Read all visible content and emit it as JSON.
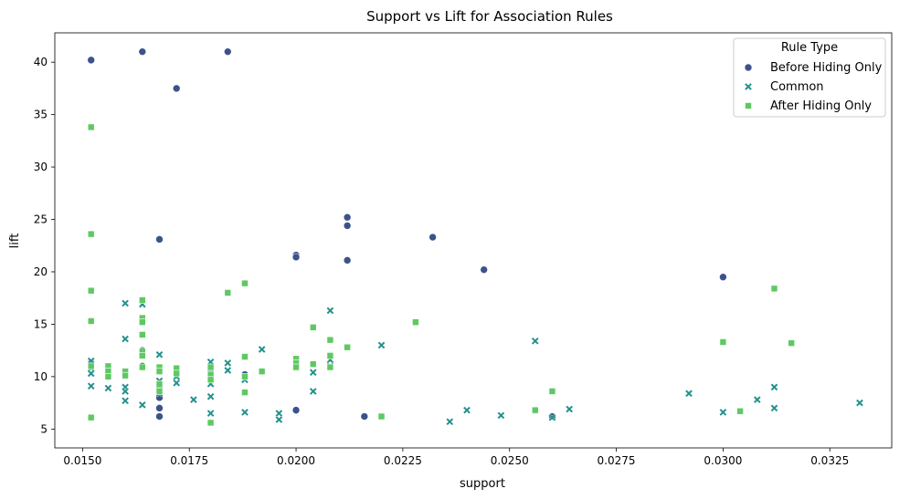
{
  "chart_data": {
    "type": "scatter",
    "title": "Support vs Lift for Association Rules",
    "xlabel": "support",
    "ylabel": "lift",
    "xlim": [
      0.01435,
      0.03395
    ],
    "ylim": [
      3.2,
      42.8
    ],
    "x_ticks": [
      "0.0150",
      "0.0175",
      "0.0200",
      "0.0225",
      "0.0250",
      "0.0275",
      "0.0300",
      "0.0325"
    ],
    "x_tick_values": [
      0.015,
      0.0175,
      0.02,
      0.0225,
      0.025,
      0.0275,
      0.03,
      0.0325
    ],
    "y_ticks": [
      "5",
      "10",
      "15",
      "20",
      "25",
      "30",
      "35",
      "40"
    ],
    "y_tick_values": [
      5,
      10,
      15,
      20,
      25,
      30,
      35,
      40
    ],
    "grid": false,
    "legend": {
      "title": "Rule Type",
      "placement": "top-right"
    },
    "series": [
      {
        "name": "Before Hiding Only",
        "marker": "circle",
        "color": "#3b528b",
        "points": [
          [
            0.0152,
            40.2
          ],
          [
            0.0164,
            41.0
          ],
          [
            0.0172,
            37.5
          ],
          [
            0.0184,
            41.0
          ],
          [
            0.0152,
            33.8
          ],
          [
            0.0152,
            23.6
          ],
          [
            0.0168,
            23.1
          ],
          [
            0.0152,
            18.2
          ],
          [
            0.0152,
            15.3
          ],
          [
            0.0152,
            11.3
          ],
          [
            0.0152,
            6.1
          ],
          [
            0.0156,
            10.6
          ],
          [
            0.016,
            10.3
          ],
          [
            0.0164,
            17.2
          ],
          [
            0.0164,
            15.5
          ],
          [
            0.0164,
            12.5
          ],
          [
            0.0164,
            11.0
          ],
          [
            0.0168,
            10.7
          ],
          [
            0.0168,
            9.0
          ],
          [
            0.0168,
            8.0
          ],
          [
            0.0168,
            7.0
          ],
          [
            0.0168,
            6.2
          ],
          [
            0.0172,
            10.5
          ],
          [
            0.018,
            10.7
          ],
          [
            0.018,
            5.6
          ],
          [
            0.0184,
            18.0
          ],
          [
            0.0188,
            18.9
          ],
          [
            0.0188,
            11.9
          ],
          [
            0.0188,
            10.2
          ],
          [
            0.0192,
            10.5
          ],
          [
            0.02,
            21.6
          ],
          [
            0.02,
            21.4
          ],
          [
            0.02,
            11.6
          ],
          [
            0.02,
            6.8
          ],
          [
            0.0204,
            14.7
          ],
          [
            0.0208,
            13.5
          ],
          [
            0.0208,
            11.9
          ],
          [
            0.0212,
            25.2
          ],
          [
            0.0212,
            24.4
          ],
          [
            0.0212,
            21.1
          ],
          [
            0.0212,
            12.8
          ],
          [
            0.0216,
            6.2
          ],
          [
            0.022,
            6.2
          ],
          [
            0.0228,
            15.2
          ],
          [
            0.0232,
            23.3
          ],
          [
            0.0244,
            20.2
          ],
          [
            0.0256,
            6.8
          ],
          [
            0.026,
            8.6
          ],
          [
            0.026,
            6.2
          ],
          [
            0.03,
            19.5
          ],
          [
            0.03,
            13.3
          ],
          [
            0.0312,
            18.4
          ],
          [
            0.0316,
            13.2
          ]
        ]
      },
      {
        "name": "Common",
        "marker": "x",
        "color": "#21918c",
        "points": [
          [
            0.0152,
            11.5
          ],
          [
            0.0152,
            10.8
          ],
          [
            0.0152,
            10.3
          ],
          [
            0.0152,
            9.1
          ],
          [
            0.0156,
            10.2
          ],
          [
            0.0156,
            8.9
          ],
          [
            0.016,
            17.0
          ],
          [
            0.016,
            13.6
          ],
          [
            0.016,
            9.0
          ],
          [
            0.016,
            8.6
          ],
          [
            0.016,
            7.7
          ],
          [
            0.0164,
            7.3
          ],
          [
            0.0164,
            16.9
          ],
          [
            0.0168,
            12.1
          ],
          [
            0.0168,
            9.6
          ],
          [
            0.0168,
            8.4
          ],
          [
            0.0172,
            10.0
          ],
          [
            0.0172,
            9.4
          ],
          [
            0.0176,
            7.8
          ],
          [
            0.018,
            11.4
          ],
          [
            0.018,
            10.3
          ],
          [
            0.018,
            9.3
          ],
          [
            0.018,
            8.1
          ],
          [
            0.018,
            6.5
          ],
          [
            0.0184,
            11.3
          ],
          [
            0.0184,
            10.6
          ],
          [
            0.0188,
            9.7
          ],
          [
            0.0188,
            6.6
          ],
          [
            0.0192,
            12.6
          ],
          [
            0.0196,
            6.5
          ],
          [
            0.0196,
            5.9
          ],
          [
            0.02,
            11.2
          ],
          [
            0.0204,
            10.4
          ],
          [
            0.0204,
            8.6
          ],
          [
            0.0208,
            16.3
          ],
          [
            0.0208,
            11.6
          ],
          [
            0.0208,
            11.0
          ],
          [
            0.022,
            13.0
          ],
          [
            0.0236,
            5.7
          ],
          [
            0.024,
            6.8
          ],
          [
            0.0248,
            6.3
          ],
          [
            0.0256,
            13.4
          ],
          [
            0.026,
            6.1
          ],
          [
            0.0264,
            6.9
          ],
          [
            0.0292,
            8.4
          ],
          [
            0.03,
            6.6
          ],
          [
            0.0308,
            7.8
          ],
          [
            0.0312,
            9.0
          ],
          [
            0.0312,
            7.0
          ],
          [
            0.0332,
            7.5
          ]
        ]
      },
      {
        "name": "After Hiding Only",
        "marker": "square",
        "color": "#5ec962",
        "points": [
          [
            0.0152,
            33.8
          ],
          [
            0.0152,
            23.6
          ],
          [
            0.0152,
            18.2
          ],
          [
            0.0152,
            15.3
          ],
          [
            0.0152,
            11.0
          ],
          [
            0.0152,
            6.1
          ],
          [
            0.0156,
            11.0
          ],
          [
            0.0156,
            10.5
          ],
          [
            0.0156,
            10.0
          ],
          [
            0.016,
            10.5
          ],
          [
            0.016,
            10.1
          ],
          [
            0.0164,
            17.3
          ],
          [
            0.0164,
            15.6
          ],
          [
            0.0164,
            15.2
          ],
          [
            0.0164,
            14.0
          ],
          [
            0.0164,
            12.4
          ],
          [
            0.0164,
            12.0
          ],
          [
            0.0164,
            10.9
          ],
          [
            0.0168,
            10.9
          ],
          [
            0.0168,
            10.5
          ],
          [
            0.0168,
            9.3
          ],
          [
            0.0168,
            8.6
          ],
          [
            0.0172,
            10.8
          ],
          [
            0.0172,
            10.3
          ],
          [
            0.018,
            10.9
          ],
          [
            0.018,
            10.2
          ],
          [
            0.018,
            9.7
          ],
          [
            0.018,
            5.6
          ],
          [
            0.0184,
            18.0
          ],
          [
            0.0188,
            18.9
          ],
          [
            0.0188,
            11.9
          ],
          [
            0.0188,
            10.0
          ],
          [
            0.0188,
            8.5
          ],
          [
            0.0192,
            10.5
          ],
          [
            0.02,
            11.7
          ],
          [
            0.02,
            11.3
          ],
          [
            0.02,
            10.9
          ],
          [
            0.0204,
            14.7
          ],
          [
            0.0204,
            11.2
          ],
          [
            0.0208,
            13.5
          ],
          [
            0.0208,
            12.0
          ],
          [
            0.0208,
            10.9
          ],
          [
            0.0212,
            12.8
          ],
          [
            0.022,
            6.2
          ],
          [
            0.0228,
            15.2
          ],
          [
            0.0256,
            6.8
          ],
          [
            0.026,
            8.6
          ],
          [
            0.03,
            13.3
          ],
          [
            0.0304,
            6.7
          ],
          [
            0.0312,
            18.4
          ],
          [
            0.0316,
            13.2
          ]
        ]
      }
    ]
  }
}
